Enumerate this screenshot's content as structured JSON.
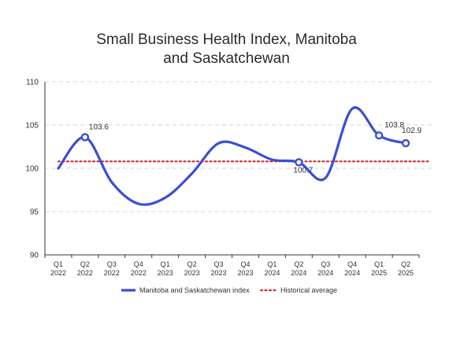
{
  "chart_data": {
    "type": "line",
    "title_lines": [
      "Small Business Health Index, Manitoba",
      "and Saskatchewan"
    ],
    "categories": [
      [
        "Q1",
        "2022"
      ],
      [
        "Q2",
        "2022"
      ],
      [
        "Q3",
        "2022"
      ],
      [
        "Q4",
        "2022"
      ],
      [
        "Q1",
        "2023"
      ],
      [
        "Q2",
        "2023"
      ],
      [
        "Q3",
        "2023"
      ],
      [
        "Q4",
        "2023"
      ],
      [
        "Q1",
        "2024"
      ],
      [
        "Q2",
        "2024"
      ],
      [
        "Q3",
        "2024"
      ],
      [
        "Q4",
        "2024"
      ],
      [
        "Q1",
        "2025"
      ],
      [
        "Q2",
        "2025"
      ]
    ],
    "ylim": [
      90,
      110
    ],
    "yticks": [
      90,
      95,
      100,
      105,
      110
    ],
    "grid": true,
    "legend_position": "bottom",
    "series": [
      {
        "name": "Manitoba and Saskatchewan index",
        "style": "smooth-line",
        "color": "#3a4fd4",
        "values": [
          100.0,
          103.6,
          98.4,
          95.9,
          96.6,
          99.4,
          102.9,
          102.4,
          101.0,
          100.7,
          98.9,
          106.9,
          103.8,
          102.9
        ],
        "marker_indices": [
          1,
          9,
          12,
          13
        ],
        "data_labels": [
          {
            "index": 1,
            "text": "103.6"
          },
          {
            "index": 9,
            "text": "100.7"
          },
          {
            "index": 12,
            "text": "103.8"
          },
          {
            "index": 13,
            "text": "102.9"
          }
        ]
      },
      {
        "name": "Historical average",
        "style": "dotted-line",
        "color": "#e0262b",
        "value": 100.8
      }
    ]
  }
}
